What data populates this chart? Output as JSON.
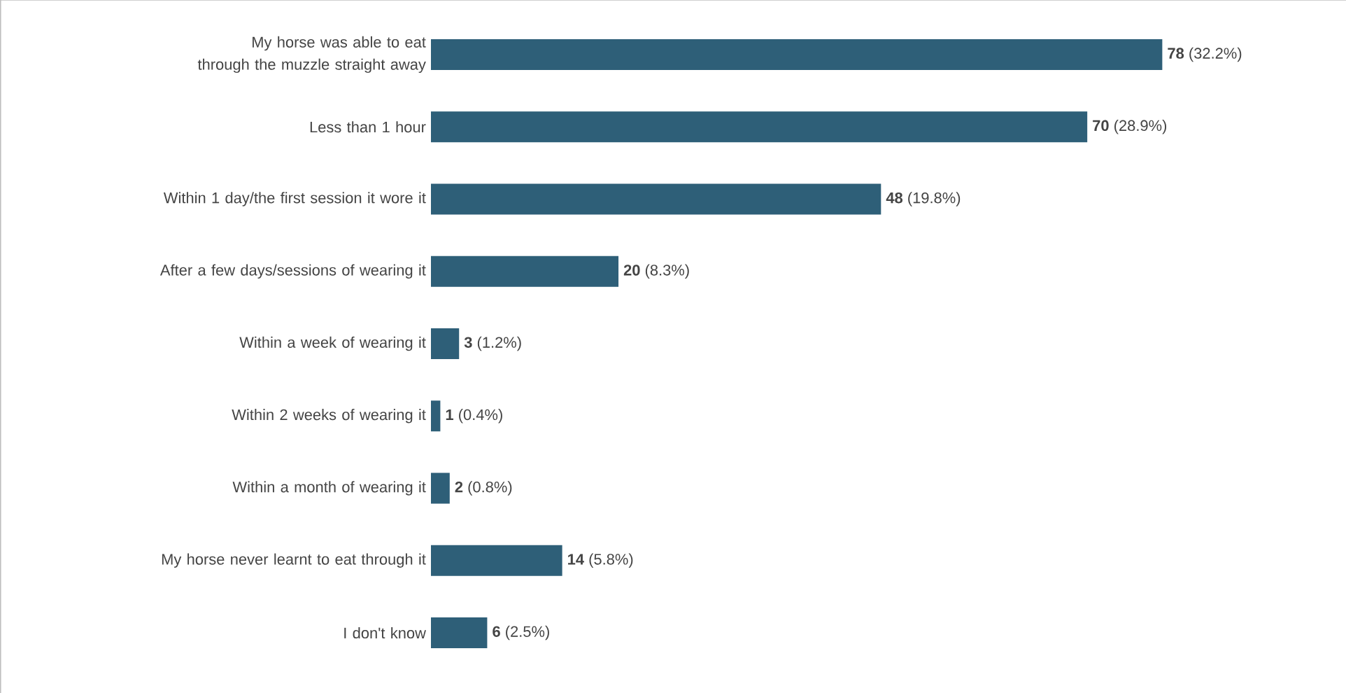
{
  "chart_data": {
    "type": "bar",
    "orientation": "horizontal",
    "categories": [
      "My horse was able to eat through the muzzle straight away",
      "Less than 1 hour",
      "Within 1 day/the first session it wore it",
      "After a few days/sessions of wearing it",
      "Within a week of wearing it",
      "Within 2 weeks of wearing it",
      "Within a month of wearing it",
      "My horse never learnt to eat through it",
      "I don't know"
    ],
    "values": [
      78,
      70,
      48,
      20,
      3,
      1,
      2,
      14,
      6
    ],
    "color": "#2e5f78",
    "value_labels": [
      "**78** (32.2%)",
      "**70** (28.9%)",
      "**48** (19.8%)",
      "**20** (8.3%)",
      "**3** (1.2%)",
      "**1** (0.4%)",
      "**2** (0.8%)",
      "**14** (5.8%)",
      "**6** (2.5%)"
    ]
  }
}
